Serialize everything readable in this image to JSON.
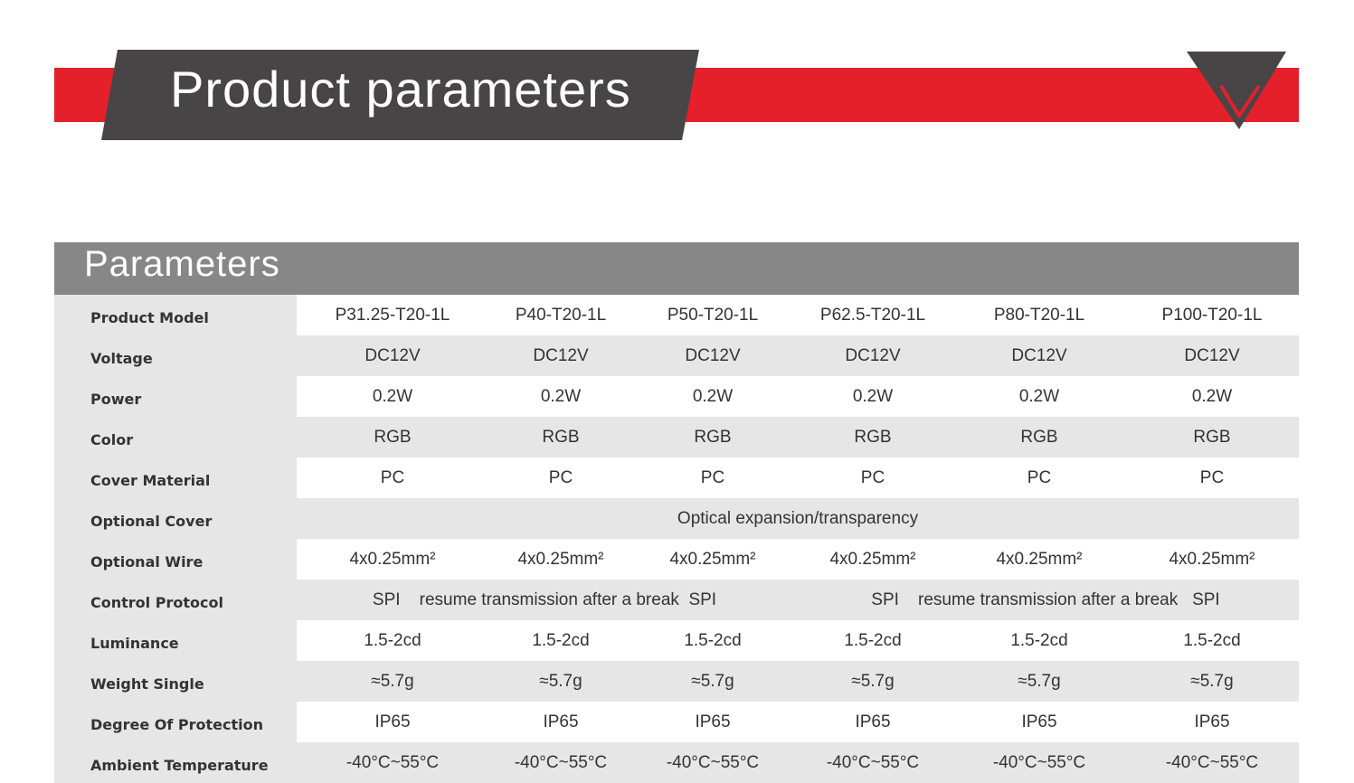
{
  "header": {
    "title": "Product parameters"
  },
  "table": {
    "title": "Parameters",
    "rows": [
      {
        "label": "Product Model",
        "cells": [
          "P31.25-T20-1L",
          "P40-T20-1L",
          "P50-T20-1L",
          "P62.5-T20-1L",
          "P80-T20-1L",
          "P100-T20-1L"
        ]
      },
      {
        "label": "Voltage",
        "cells": [
          "DC12V",
          "DC12V",
          "DC12V",
          "DC12V",
          "DC12V",
          "DC12V"
        ]
      },
      {
        "label": "Power",
        "cells": [
          "0.2W",
          "0.2W",
          "0.2W",
          "0.2W",
          "0.2W",
          "0.2W"
        ]
      },
      {
        "label": "Color",
        "cells": [
          "RGB",
          "RGB",
          "RGB",
          "RGB",
          "RGB",
          "RGB"
        ]
      },
      {
        "label": "Cover Material",
        "cells": [
          "PC",
          "PC",
          "PC",
          "PC",
          "PC",
          "PC"
        ]
      },
      {
        "label": "Optional Cover",
        "cells": [
          "Optical expansion/transparency"
        ]
      },
      {
        "label": "Optional Wire",
        "cells": [
          "4x0.25mm²",
          "4x0.25mm²",
          "4x0.25mm²",
          "4x0.25mm²",
          "4x0.25mm²",
          "4x0.25mm²"
        ]
      },
      {
        "label": "Control Protocol",
        "cells": [
          "SPI    resume transmission after a break  SPI",
          "SPI    resume transmission after a break   SPI"
        ]
      },
      {
        "label": "Luminance",
        "cells": [
          "1.5-2cd",
          "1.5-2cd",
          "1.5-2cd",
          "1.5-2cd",
          "1.5-2cd",
          "1.5-2cd"
        ]
      },
      {
        "label": "Weight Single",
        "cells": [
          "≈5.7g",
          "≈5.7g",
          "≈5.7g",
          "≈5.7g",
          "≈5.7g",
          "≈5.7g"
        ]
      },
      {
        "label": "Degree Of Protection",
        "cells": [
          "IP65",
          "IP65",
          "IP65",
          "IP65",
          "IP65",
          "IP65"
        ]
      },
      {
        "label": "Ambient Temperature",
        "cells": [
          "-40°C~55°C",
          "-40°C~55°C",
          "-40°C~55°C",
          "-40°C~55°C",
          "-40°C~55°C",
          "-40°C~55°C"
        ]
      }
    ]
  }
}
